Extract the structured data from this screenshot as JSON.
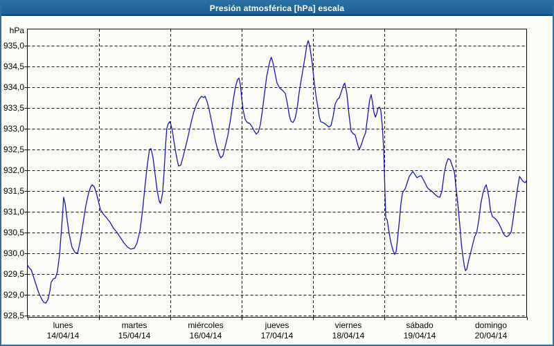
{
  "window": {
    "title": "Presión atmosférica [hPa] escala"
  },
  "colors": {
    "titlebar_top": "#2a70a4",
    "titlebar_bottom": "#1b5f92",
    "titlebar_underline": "#0f3e66",
    "window_border": "#2f6da5",
    "background": "#fbfcf7",
    "plot_border": "#000000",
    "gridline": "#111111",
    "line": "#1515b5",
    "label_text": "#000000",
    "title_text": "#ffffff"
  },
  "chart_data": {
    "type": "line",
    "title": "Presión atmosférica [hPa] escala",
    "unit_label": "hPa",
    "ylabel": "hPa",
    "xlabel": "",
    "y_min": 928.5,
    "y_max": 935.0,
    "y_step": 0.5,
    "grid": "dashed",
    "legend_position": "none",
    "y_tick_labels": [
      "935,0",
      "934,5",
      "934,0",
      "933,5",
      "933,0",
      "932,5",
      "932,0",
      "931,5",
      "931,0",
      "930,5",
      "930,0",
      "929,5",
      "929,0",
      "928,5"
    ],
    "x_days": [
      {
        "name": "lunes",
        "date": "14/04/14"
      },
      {
        "name": "martes",
        "date": "15/04/14"
      },
      {
        "name": "miércoles",
        "date": "16/04/14"
      },
      {
        "name": "jueves",
        "date": "17/04/14"
      },
      {
        "name": "viernes",
        "date": "18/04/14"
      },
      {
        "name": "sábado",
        "date": "19/04/14"
      },
      {
        "name": "domingo",
        "date": "20/04/14"
      }
    ],
    "x_hours_total": 168,
    "series": [
      {
        "name": "Presión atmosférica",
        "unit": "hPa",
        "points": [
          [
            0,
            929.72
          ],
          [
            0.6,
            929.65
          ],
          [
            1.3,
            929.6
          ],
          [
            2,
            929.45
          ],
          [
            2.9,
            929.25
          ],
          [
            3.8,
            929.05
          ],
          [
            4.8,
            928.9
          ],
          [
            5.5,
            928.82
          ],
          [
            6.2,
            928.8
          ],
          [
            6.9,
            928.88
          ],
          [
            7.6,
            929.1
          ],
          [
            8,
            929.3
          ],
          [
            8.7,
            929.38
          ],
          [
            9.4,
            929.4
          ],
          [
            10.1,
            929.55
          ],
          [
            10.8,
            929.95
          ],
          [
            11.5,
            930.6
          ],
          [
            12,
            931.1
          ],
          [
            12.2,
            931.35
          ],
          [
            12.7,
            931.2
          ],
          [
            13.4,
            930.8
          ],
          [
            14.1,
            930.45
          ],
          [
            15,
            930.15
          ],
          [
            16,
            930.02
          ],
          [
            16.9,
            930
          ],
          [
            17.8,
            930.3
          ],
          [
            18.8,
            930.75
          ],
          [
            19.7,
            931.15
          ],
          [
            20.6,
            931.45
          ],
          [
            21.3,
            931.6
          ],
          [
            21.8,
            931.65
          ],
          [
            22.5,
            931.6
          ],
          [
            23.2,
            931.45
          ],
          [
            23.9,
            931.25
          ],
          [
            24.6,
            931.05
          ],
          [
            25.5,
            930.95
          ],
          [
            26.7,
            930.85
          ],
          [
            27.8,
            930.75
          ],
          [
            29,
            930.6
          ],
          [
            30.2,
            930.5
          ],
          [
            31.3,
            930.38
          ],
          [
            32.5,
            930.25
          ],
          [
            33.7,
            930.15
          ],
          [
            34.8,
            930.1
          ],
          [
            36,
            930.12
          ],
          [
            36.9,
            930.25
          ],
          [
            37.9,
            930.55
          ],
          [
            38.8,
            931.05
          ],
          [
            39.7,
            931.7
          ],
          [
            40.4,
            932.15
          ],
          [
            41.1,
            932.5
          ],
          [
            41.6,
            932.52
          ],
          [
            42.3,
            932.3
          ],
          [
            43,
            931.9
          ],
          [
            43.7,
            931.5
          ],
          [
            44.4,
            931.25
          ],
          [
            44.8,
            931.2
          ],
          [
            45.5,
            931.45
          ],
          [
            46,
            931.95
          ],
          [
            46.5,
            932.6
          ],
          [
            46.9,
            933
          ],
          [
            47.4,
            933.12
          ],
          [
            47.9,
            933.17
          ],
          [
            48.3,
            933.1
          ],
          [
            48.8,
            932.95
          ],
          [
            49.3,
            932.7
          ],
          [
            50,
            932.4
          ],
          [
            50.5,
            932.22
          ],
          [
            50.9,
            932.1
          ],
          [
            51.6,
            932.12
          ],
          [
            52.3,
            932.3
          ],
          [
            53.2,
            932.55
          ],
          [
            54.2,
            932.85
          ],
          [
            55.1,
            933.15
          ],
          [
            56,
            933.4
          ],
          [
            57,
            933.6
          ],
          [
            57.9,
            933.72
          ],
          [
            58.6,
            933.78
          ],
          [
            59.3,
            933.75
          ],
          [
            59.8,
            933.78
          ],
          [
            60.5,
            933.65
          ],
          [
            61.2,
            933.45
          ],
          [
            61.9,
            933.2
          ],
          [
            62.6,
            932.95
          ],
          [
            63.3,
            932.7
          ],
          [
            64,
            932.5
          ],
          [
            64.7,
            932.35
          ],
          [
            65.1,
            932.3
          ],
          [
            65.8,
            932.35
          ],
          [
            66.5,
            932.55
          ],
          [
            67.5,
            932.85
          ],
          [
            68.4,
            933.25
          ],
          [
            69.3,
            933.7
          ],
          [
            70,
            934
          ],
          [
            70.7,
            934.18
          ],
          [
            71.2,
            934.22
          ],
          [
            71.7,
            934.05
          ],
          [
            72.1,
            933.75
          ],
          [
            72.6,
            933.45
          ],
          [
            73.3,
            933.22
          ],
          [
            74,
            933.15
          ],
          [
            74.9,
            933.12
          ],
          [
            75.6,
            933.05
          ],
          [
            76.3,
            932.95
          ],
          [
            77,
            932.87
          ],
          [
            77.7,
            932.92
          ],
          [
            78.4,
            933.1
          ],
          [
            79.1,
            933.45
          ],
          [
            79.8,
            933.85
          ],
          [
            80.5,
            934.25
          ],
          [
            81.2,
            934.5
          ],
          [
            81.7,
            934.65
          ],
          [
            82.1,
            934.72
          ],
          [
            82.6,
            934.6
          ],
          [
            83.3,
            934.35
          ],
          [
            84,
            934.1
          ],
          [
            84.9,
            933.98
          ],
          [
            85.9,
            933.92
          ],
          [
            86.8,
            933.85
          ],
          [
            87.5,
            933.6
          ],
          [
            88.2,
            933.3
          ],
          [
            88.7,
            933.18
          ],
          [
            89.4,
            933.15
          ],
          [
            90.1,
            933.25
          ],
          [
            90.8,
            933.5
          ],
          [
            91.5,
            933.9
          ],
          [
            92.2,
            934.2
          ],
          [
            92.9,
            934.5
          ],
          [
            93.6,
            934.8
          ],
          [
            94,
            935
          ],
          [
            94.5,
            935.12
          ],
          [
            95,
            935
          ],
          [
            95.4,
            934.8
          ],
          [
            95.9,
            934.55
          ],
          [
            96.4,
            934.2
          ],
          [
            97.1,
            933.8
          ],
          [
            97.8,
            933.5
          ],
          [
            98.2,
            933.3
          ],
          [
            98.7,
            933.17
          ],
          [
            99.4,
            933.15
          ],
          [
            100.1,
            933.12
          ],
          [
            100.8,
            933.08
          ],
          [
            101.5,
            933.04
          ],
          [
            102.2,
            933.08
          ],
          [
            102.9,
            933.3
          ],
          [
            103.6,
            933.6
          ],
          [
            104.3,
            933.7
          ],
          [
            105,
            933.75
          ],
          [
            105.7,
            933.9
          ],
          [
            106.4,
            934.05
          ],
          [
            106.8,
            934.1
          ],
          [
            107.5,
            933.85
          ],
          [
            108.2,
            933.35
          ],
          [
            108.9,
            932.95
          ],
          [
            109.6,
            932.88
          ],
          [
            110.3,
            932.85
          ],
          [
            111,
            932.65
          ],
          [
            111.7,
            932.5
          ],
          [
            112.4,
            932.62
          ],
          [
            113.1,
            932.78
          ],
          [
            113.8,
            932.9
          ],
          [
            114.5,
            933.3
          ],
          [
            115.2,
            933.7
          ],
          [
            115.7,
            933.82
          ],
          [
            116.1,
            933.65
          ],
          [
            116.6,
            933.4
          ],
          [
            117.1,
            933.28
          ],
          [
            117.5,
            933.35
          ],
          [
            118,
            933.5
          ],
          [
            118.5,
            933.52
          ],
          [
            118.9,
            933.45
          ],
          [
            119.4,
            933.1
          ],
          [
            119.9,
            932.5
          ],
          [
            120.4,
            931.3
          ],
          [
            120.6,
            930.85
          ],
          [
            121.1,
            930.8
          ],
          [
            121.5,
            930.6
          ],
          [
            122.2,
            930.3
          ],
          [
            122.9,
            930.1
          ],
          [
            123.6,
            929.97
          ],
          [
            124.1,
            930.05
          ],
          [
            124.5,
            930.3
          ],
          [
            125.2,
            930.8
          ],
          [
            125.7,
            931.2
          ],
          [
            126.2,
            931.45
          ],
          [
            126.6,
            931.5
          ],
          [
            127.1,
            931.55
          ],
          [
            127.8,
            931.7
          ],
          [
            128.5,
            931.85
          ],
          [
            129.2,
            931.92
          ],
          [
            129.7,
            931.97
          ],
          [
            130.4,
            931.9
          ],
          [
            131.1,
            931.82
          ],
          [
            131.8,
            931.85
          ],
          [
            132.5,
            931.87
          ],
          [
            133.2,
            931.78
          ],
          [
            133.9,
            931.68
          ],
          [
            134.6,
            931.58
          ],
          [
            135.3,
            931.53
          ],
          [
            136,
            931.5
          ],
          [
            136.7,
            931.45
          ],
          [
            137.4,
            931.4
          ],
          [
            138.1,
            931.36
          ],
          [
            138.8,
            931.35
          ],
          [
            139.5,
            931.5
          ],
          [
            140.2,
            931.9
          ],
          [
            140.9,
            932.15
          ],
          [
            141.6,
            932.28
          ],
          [
            142.3,
            932.25
          ],
          [
            143,
            932.1
          ],
          [
            143.7,
            931.95
          ],
          [
            144.2,
            931.6
          ],
          [
            144.6,
            931.35
          ],
          [
            145.1,
            931
          ],
          [
            145.6,
            930.6
          ],
          [
            146,
            930.25
          ],
          [
            146.5,
            929.95
          ],
          [
            147,
            929.7
          ],
          [
            147.4,
            929.58
          ],
          [
            147.9,
            929.62
          ],
          [
            148.4,
            929.8
          ],
          [
            149.1,
            930
          ],
          [
            149.8,
            930.2
          ],
          [
            150.5,
            930.4
          ],
          [
            151.2,
            930.5
          ],
          [
            151.9,
            930.8
          ],
          [
            152.6,
            931.2
          ],
          [
            153.3,
            931.45
          ],
          [
            154,
            931.6
          ],
          [
            154.4,
            931.65
          ],
          [
            154.9,
            931.5
          ],
          [
            155.4,
            931.3
          ],
          [
            155.8,
            931.05
          ],
          [
            156.5,
            930.88
          ],
          [
            157.2,
            930.85
          ],
          [
            157.9,
            930.8
          ],
          [
            158.6,
            930.72
          ],
          [
            159.3,
            930.62
          ],
          [
            160,
            930.5
          ],
          [
            160.7,
            930.42
          ],
          [
            161.4,
            930.4
          ],
          [
            162.1,
            930.44
          ],
          [
            162.8,
            930.52
          ],
          [
            163.5,
            930.85
          ],
          [
            164.2,
            931.2
          ],
          [
            164.9,
            931.55
          ],
          [
            165.6,
            931.85
          ],
          [
            166.1,
            931.8
          ],
          [
            166.8,
            931.73
          ],
          [
            167.5,
            931.7
          ],
          [
            168,
            931.75
          ]
        ]
      }
    ]
  }
}
